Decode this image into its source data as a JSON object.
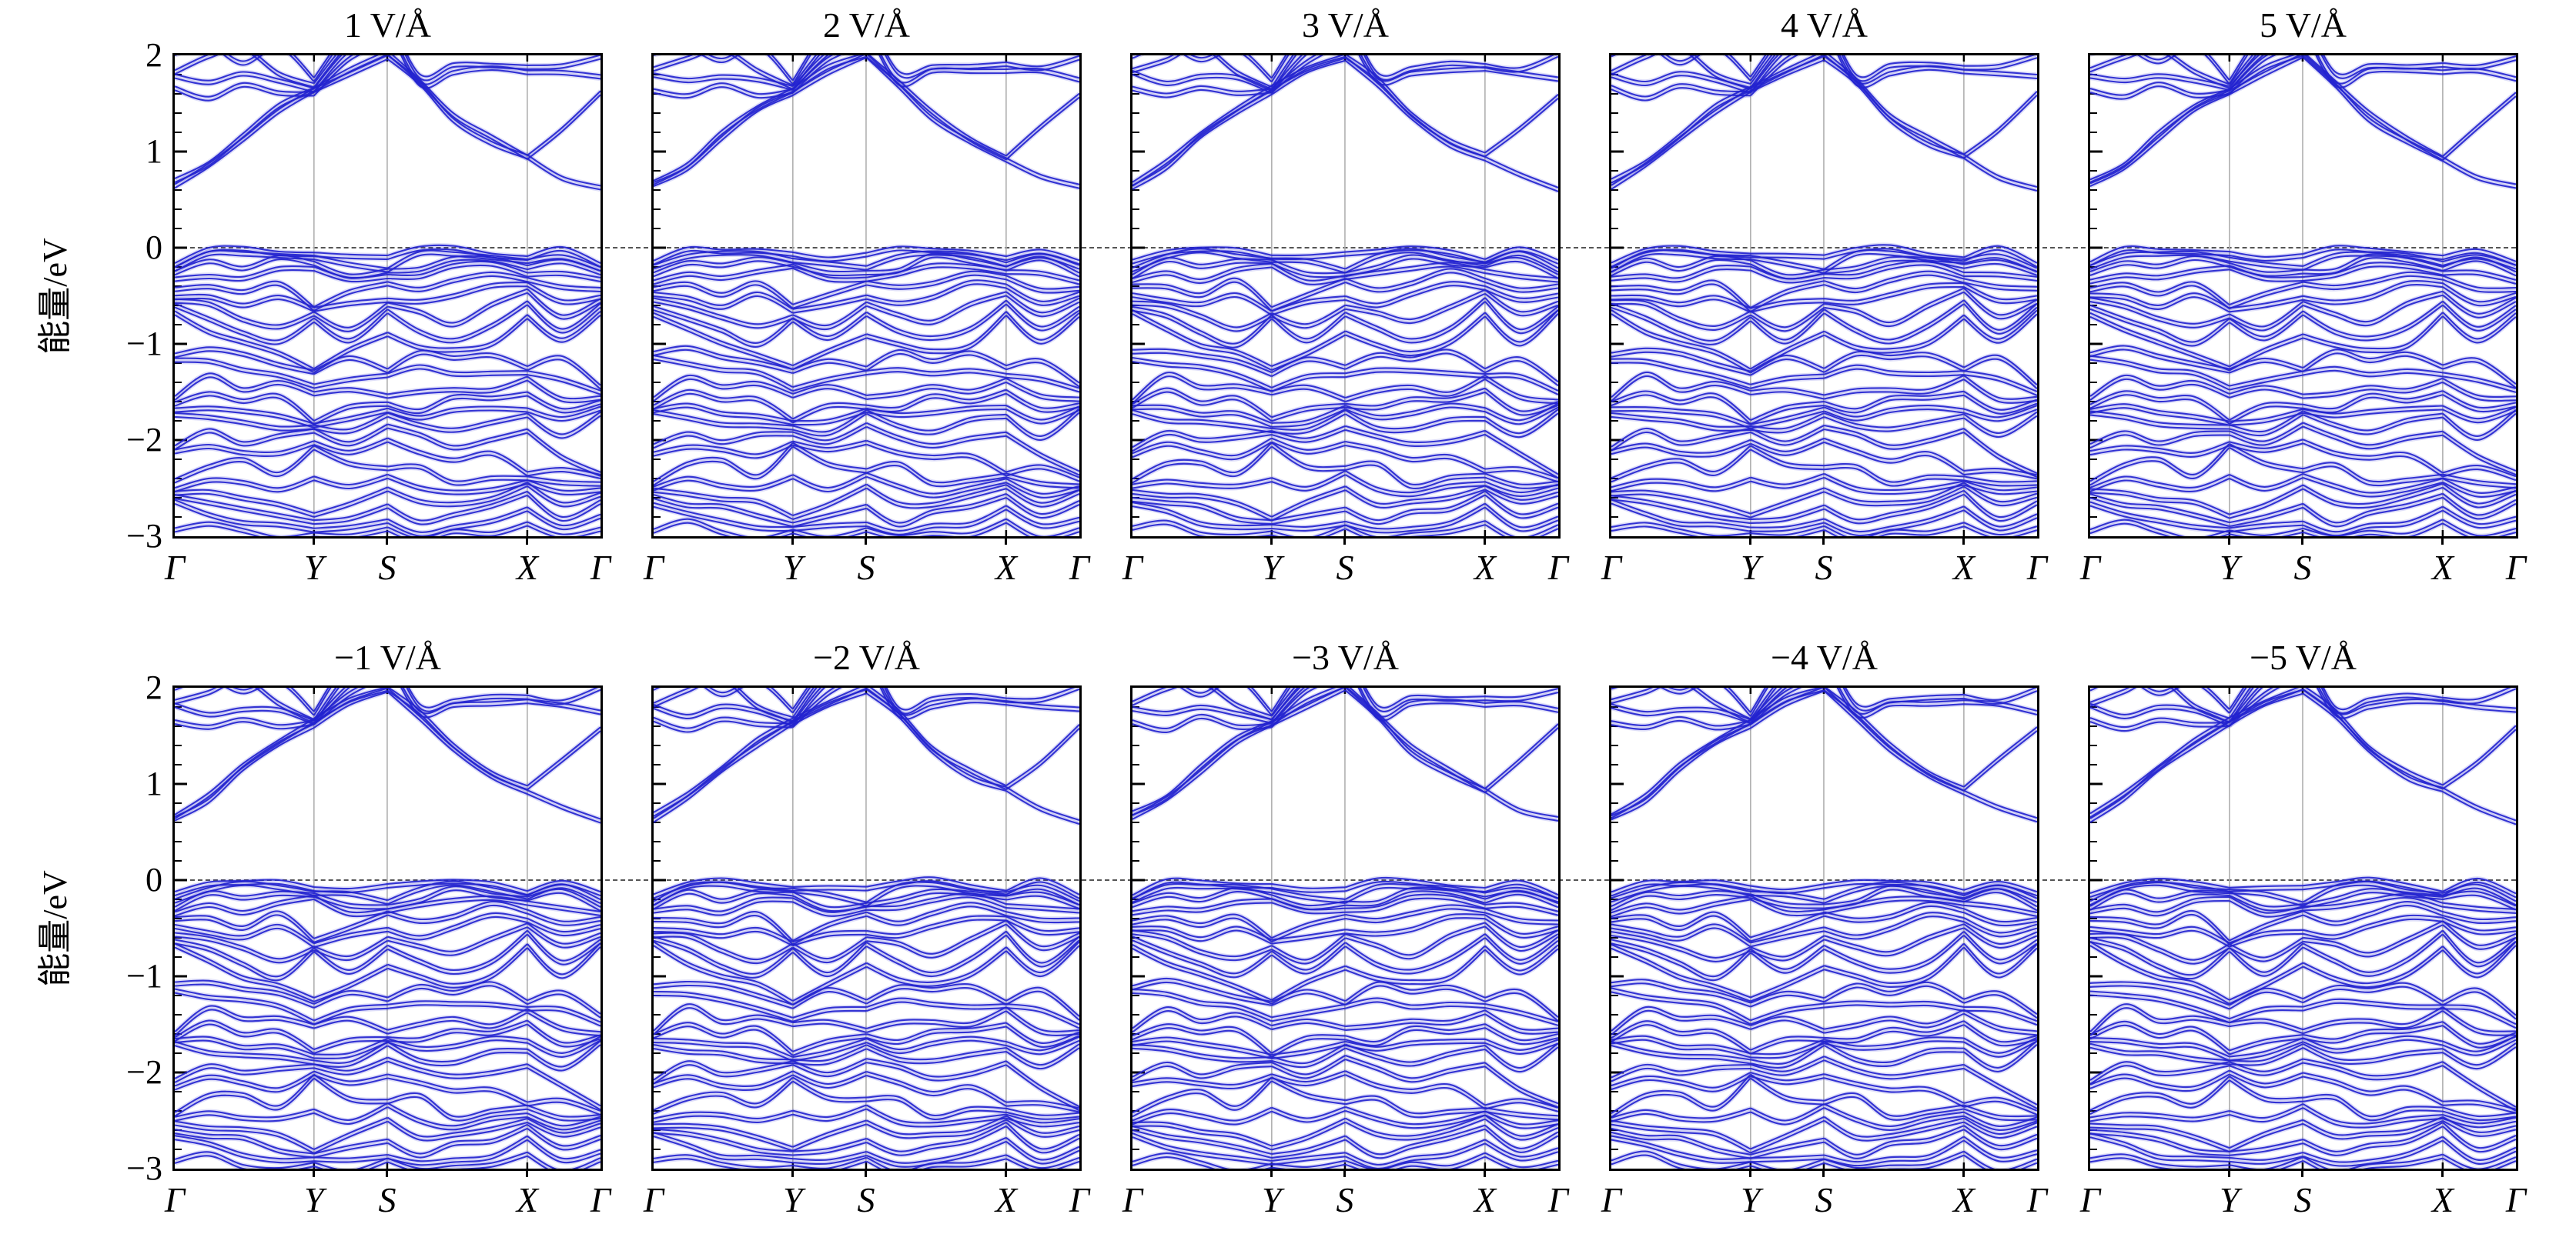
{
  "chart_data": {
    "type": "line",
    "subtype": "electronic band structure, 2 rows x 5 columns of subplots",
    "band_color": "#2323cf",
    "gridline_color": "#b0b0b0",
    "spine_color": "#000000",
    "fermi_line": {
      "energy_eV": 0,
      "style": "dashed",
      "color": "#555555"
    },
    "rows": [
      {
        "ylabel": "能量/eV",
        "panel_titles": [
          "1 V/Å",
          "2 V/Å",
          "3 V/Å",
          "4 V/Å",
          "5 V/Å"
        ]
      },
      {
        "ylabel": "能量/eV",
        "panel_titles": [
          "−1 V/Å",
          "−2 V/Å",
          "−3 V/Å",
          "−4 V/Å",
          "−5 V/Å"
        ]
      }
    ],
    "x_axis": {
      "kpoint_labels": [
        "Γ",
        "Y",
        "S",
        "X",
        "Γ"
      ],
      "kpoint_fractions": [
        0,
        0.327,
        0.499,
        0.828,
        1.0
      ],
      "gridlines_at": [
        "Y",
        "S",
        "X"
      ]
    },
    "y_axis": {
      "label": "能量/eV",
      "min": -3,
      "max": 2,
      "major_ticks": [
        2,
        1,
        0,
        -1,
        -2,
        -3
      ],
      "major_tick_labels": [
        "2",
        "1",
        "0",
        "−1",
        "−2",
        "−3"
      ],
      "minor_tick_step": 0.2
    },
    "k_fractions": [
      0,
      0.08,
      0.16,
      0.245,
      0.327,
      0.41,
      0.5,
      0.575,
      0.655,
      0.745,
      0.828,
      0.91,
      1.0
    ],
    "doublet_split_eV": 0.04,
    "bands_eV": [
      [
        0.62,
        0.82,
        1.12,
        1.4,
        1.6,
        1.8,
        1.96,
        1.68,
        1.32,
        1.06,
        0.91,
        0.72,
        0.6
      ],
      [
        0.66,
        0.86,
        1.16,
        1.44,
        1.63,
        1.84,
        1.99,
        1.72,
        1.37,
        1.11,
        0.93,
        1.22,
        1.57
      ],
      [
        1.63,
        1.55,
        1.66,
        1.58,
        1.6,
        1.93,
        2.12,
        2.3,
        2.4,
        2.4,
        2.4,
        2.4,
        2.4
      ],
      [
        1.78,
        1.7,
        1.77,
        1.73,
        1.62,
        2.02,
        2.22,
        2.42,
        2.5,
        2.5,
        2.5,
        2.5,
        2.5
      ],
      [
        1.82,
        1.95,
        2.06,
        1.8,
        1.65,
        2.12,
        2.35,
        2.5,
        2.5,
        2.5,
        2.5,
        2.5,
        2.5
      ],
      [
        1.99,
        2.08,
        1.92,
        2.06,
        1.72,
        2.25,
        2.5,
        2.6,
        2.6,
        2.6,
        2.6,
        2.6,
        2.6
      ],
      [
        2.6,
        2.6,
        2.6,
        2.6,
        2.3,
        2.6,
        2.3,
        1.7,
        1.8,
        1.83,
        1.82,
        1.8,
        1.74
      ],
      [
        2.7,
        2.7,
        2.7,
        2.7,
        2.5,
        2.7,
        2.45,
        1.78,
        1.86,
        1.88,
        1.87,
        1.85,
        1.97
      ],
      [
        -0.18,
        -0.05,
        -0.04,
        -0.06,
        -0.1,
        -0.12,
        -0.1,
        -0.04,
        -0.03,
        -0.08,
        -0.14,
        -0.04,
        -0.18
      ],
      [
        -0.24,
        -0.1,
        -0.07,
        -0.1,
        -0.14,
        -0.18,
        -0.25,
        -0.1,
        -0.07,
        -0.12,
        -0.18,
        -0.1,
        -0.24
      ],
      [
        -0.3,
        -0.16,
        -0.22,
        -0.14,
        -0.18,
        -0.3,
        -0.28,
        -0.24,
        -0.12,
        -0.16,
        -0.22,
        -0.15,
        -0.3
      ],
      [
        -0.36,
        -0.3,
        -0.35,
        -0.25,
        -0.22,
        -0.36,
        -0.33,
        -0.3,
        -0.22,
        -0.2,
        -0.28,
        -0.3,
        -0.36
      ],
      [
        -0.44,
        -0.42,
        -0.5,
        -0.38,
        -0.65,
        -0.5,
        -0.38,
        -0.45,
        -0.38,
        -0.28,
        -0.35,
        -0.45,
        -0.44
      ],
      [
        -0.52,
        -0.55,
        -0.62,
        -0.52,
        -0.68,
        -0.6,
        -0.55,
        -0.6,
        -0.52,
        -0.4,
        -0.42,
        -0.58,
        -0.52
      ],
      [
        -0.58,
        -0.62,
        -0.75,
        -0.85,
        -0.72,
        -0.85,
        -0.62,
        -0.7,
        -0.8,
        -0.62,
        -0.48,
        -0.72,
        -0.58
      ],
      [
        -0.64,
        -0.75,
        -0.9,
        -1.02,
        -0.76,
        -0.98,
        -0.7,
        -0.88,
        -0.98,
        -0.85,
        -0.58,
        -0.88,
        -0.64
      ],
      [
        -0.7,
        -0.88,
        -1.02,
        -1.12,
        -1.28,
        -1.1,
        -0.92,
        -1.04,
        -1.1,
        -1.02,
        -0.72,
        -1.0,
        -0.7
      ],
      [
        -1.12,
        -1.08,
        -1.14,
        -1.22,
        -1.32,
        -1.18,
        -1.28,
        -1.12,
        -1.18,
        -1.12,
        -1.28,
        -1.18,
        -1.45
      ],
      [
        -1.18,
        -1.22,
        -1.28,
        -1.34,
        -1.48,
        -1.38,
        -1.34,
        -1.28,
        -1.32,
        -1.32,
        -1.34,
        -1.38,
        -1.52
      ],
      [
        -1.6,
        -1.35,
        -1.48,
        -1.44,
        -1.54,
        -1.48,
        -1.58,
        -1.52,
        -1.48,
        -1.52,
        -1.38,
        -1.58,
        -1.6
      ],
      [
        -1.66,
        -1.52,
        -1.62,
        -1.58,
        -1.82,
        -1.68,
        -1.66,
        -1.7,
        -1.58,
        -1.6,
        -1.52,
        -1.72,
        -1.64
      ],
      [
        -1.7,
        -1.68,
        -1.74,
        -1.76,
        -1.86,
        -1.82,
        -1.7,
        -1.78,
        -1.73,
        -1.68,
        -1.7,
        -1.82,
        -1.68
      ],
      [
        -1.74,
        -1.8,
        -1.84,
        -1.88,
        -1.9,
        -1.93,
        -1.74,
        -1.88,
        -1.92,
        -1.82,
        -1.78,
        -1.98,
        -1.73
      ],
      [
        -2.1,
        -1.94,
        -2.04,
        -1.98,
        -1.94,
        -2.04,
        -1.88,
        -1.98,
        -2.08,
        -2.02,
        -1.94,
        -2.18,
        -2.38
      ],
      [
        -2.16,
        -2.08,
        -2.14,
        -2.18,
        -2.04,
        -2.14,
        -2.04,
        -2.14,
        -2.22,
        -2.18,
        -2.36,
        -2.32,
        -2.42
      ],
      [
        -2.45,
        -2.28,
        -2.24,
        -2.38,
        -2.08,
        -2.28,
        -2.32,
        -2.28,
        -2.48,
        -2.42,
        -2.4,
        -2.48,
        -2.48
      ],
      [
        -2.52,
        -2.44,
        -2.48,
        -2.52,
        -2.42,
        -2.52,
        -2.38,
        -2.52,
        -2.58,
        -2.52,
        -2.46,
        -2.58,
        -2.52
      ],
      [
        -2.56,
        -2.58,
        -2.62,
        -2.68,
        -2.82,
        -2.68,
        -2.52,
        -2.68,
        -2.68,
        -2.62,
        -2.5,
        -2.68,
        -2.58
      ],
      [
        -2.62,
        -2.68,
        -2.72,
        -2.82,
        -2.88,
        -2.82,
        -2.72,
        -2.88,
        -2.78,
        -2.72,
        -2.58,
        -2.82,
        -2.68
      ],
      [
        -2.68,
        -2.78,
        -2.88,
        -2.92,
        -2.94,
        -2.93,
        -2.88,
        -2.98,
        -2.93,
        -2.88,
        -2.72,
        -2.93,
        -2.83
      ],
      [
        -2.95,
        -2.88,
        -2.98,
        -3.04,
        -2.99,
        -3.04,
        -2.94,
        -3.05,
        -2.99,
        -2.99,
        -2.88,
        -3.04,
        -2.94
      ]
    ]
  }
}
